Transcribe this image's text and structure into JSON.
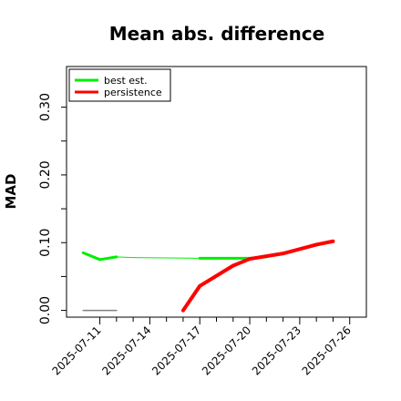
{
  "chart_data": {
    "type": "line",
    "title": "Mean abs. difference",
    "xlabel": "",
    "ylabel": "MAD",
    "y_tick_labels": [
      "0.00",
      "0.10",
      "0.20",
      "0.30"
    ],
    "ylim": [
      -0.01,
      0.36
    ],
    "x_tick_labels": [
      "2025-07-11",
      "2025-07-14",
      "2025-07-17",
      "2025-07-20",
      "2025-07-23",
      "2025-07-26"
    ],
    "x_ticks": [
      "2025-07-11",
      "2025-07-12",
      "2025-07-13",
      "2025-07-14",
      "2025-07-15",
      "2025-07-16",
      "2025-07-17",
      "2025-07-18",
      "2025-07-19",
      "2025-07-20",
      "2025-07-21",
      "2025-07-22",
      "2025-07-23",
      "2025-07-24",
      "2025-07-25",
      "2025-07-26"
    ],
    "xlim": [
      "2025-07-09",
      "2025-07-27"
    ],
    "grid": false,
    "legend_position": "top-left",
    "series": [
      {
        "name": "best est.",
        "color": "#00ee00",
        "points": [
          {
            "x": "2025-07-10",
            "y": 0.085,
            "lw": 3
          },
          {
            "x": "2025-07-11",
            "y": 0.075,
            "lw": 3
          },
          {
            "x": "2025-07-12",
            "y": 0.079,
            "lw": 3
          },
          {
            "x": "2025-07-13",
            "y": 0.078,
            "lw": 1
          },
          {
            "x": "2025-07-17",
            "y": 0.077,
            "lw": 1
          },
          {
            "x": "2025-07-20",
            "y": 0.077,
            "lw": 3
          },
          {
            "x": "2025-07-21",
            "y": 0.079,
            "lw": 3
          }
        ]
      },
      {
        "name": "persistence",
        "color": "#ff0000",
        "points": [
          {
            "x": "2025-07-16",
            "y": 0.0,
            "lw": 4
          },
          {
            "x": "2025-07-17",
            "y": 0.036,
            "lw": 4
          },
          {
            "x": "2025-07-19",
            "y": 0.066,
            "lw": 4
          },
          {
            "x": "2025-07-20",
            "y": 0.076,
            "lw": 4
          },
          {
            "x": "2025-07-22",
            "y": 0.084,
            "lw": 4
          },
          {
            "x": "2025-07-24",
            "y": 0.097,
            "lw": 4
          },
          {
            "x": "2025-07-25",
            "y": 0.102,
            "lw": 4
          }
        ]
      },
      {
        "name": "",
        "color": "#808080",
        "points": [
          {
            "x": "2025-07-10",
            "y": 0.0,
            "lw": 1.5
          },
          {
            "x": "2025-07-12",
            "y": 0.0,
            "lw": 1.5
          }
        ]
      }
    ]
  }
}
